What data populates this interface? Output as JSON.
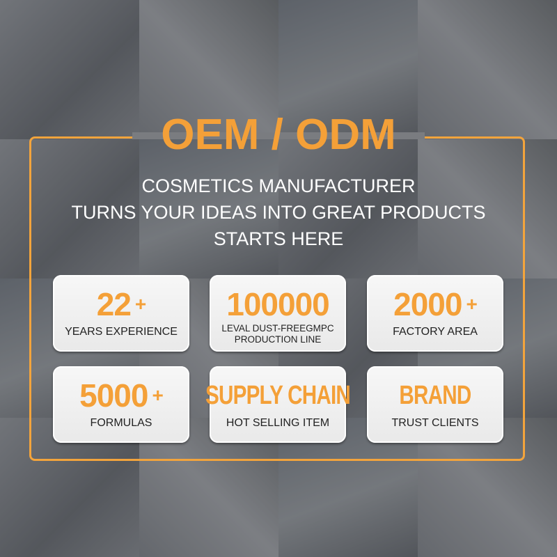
{
  "title": "OEM / ODM",
  "subtitle_lines": [
    "COSMETICS MANUFACTURER",
    "TURNS YOUR IDEAS INTO GREAT PRODUCTS",
    "STARTS HERE"
  ],
  "accent_color": "#f4a038",
  "cards": [
    {
      "value": "22",
      "suffix": "+",
      "label": "YEARS EXPERIENCE"
    },
    {
      "value": "100000",
      "suffix": "",
      "label_line1": "LEVAL DUST-FREEGMPC",
      "label_line2": "PRODUCTION LINE"
    },
    {
      "value": "2000",
      "suffix": "+",
      "label": "FACTORY AREA"
    },
    {
      "value": "5000",
      "suffix": "+",
      "label": "FORMULAS"
    },
    {
      "value": "SUPPLY CHAIN",
      "suffix": "",
      "label": "HOT SELLING ITEM"
    },
    {
      "value": "BRAND",
      "suffix": "",
      "label": "TRUST CLIENTS"
    }
  ]
}
